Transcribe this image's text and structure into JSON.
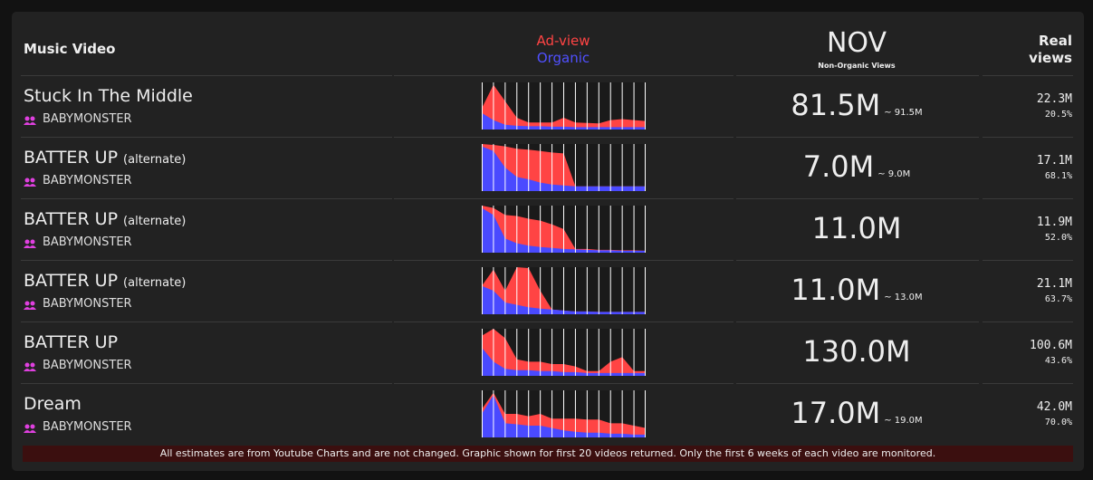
{
  "header": {
    "col_title": "Music Video",
    "legend_adview": "Ad-view",
    "legend_organic": "Organic",
    "nov_title": "NOV",
    "nov_subtitle": "Non-Organic Views",
    "real_views": "Real views"
  },
  "rows": [
    {
      "title": "Stuck In The Middle",
      "artist": "BABYMONSTER",
      "nov": "81.5M",
      "nov_range": "~ 91.5M",
      "real_views": "22.3M",
      "real_pct": "20.5%",
      "adview": [
        45,
        95,
        60,
        25,
        15,
        15,
        15,
        25,
        15,
        14,
        13,
        20,
        22,
        20,
        18
      ],
      "organic": [
        35,
        20,
        10,
        8,
        7,
        7,
        6,
        6,
        5,
        5,
        5,
        5,
        5,
        5,
        5
      ]
    },
    {
      "title": "BATTER UP",
      "suffix": "(alternate)",
      "artist": "BABYMONSTER",
      "nov": "7.0M",
      "nov_range": "~ 9.0M",
      "real_views": "17.1M",
      "real_pct": "68.1%",
      "adview": [
        100,
        98,
        95,
        90,
        88,
        85,
        82,
        80,
        10,
        10,
        10,
        10,
        10,
        10,
        10
      ],
      "organic": [
        95,
        85,
        50,
        30,
        25,
        18,
        14,
        12,
        10,
        10,
        10,
        10,
        10,
        10,
        10
      ]
    },
    {
      "title": "BATTER UP",
      "suffix": "(alternate)",
      "artist": "BABYMONSTER",
      "nov": "11.0M",
      "real_views": "11.9M",
      "real_pct": "52.0%",
      "adview": [
        100,
        95,
        80,
        78,
        72,
        68,
        60,
        50,
        8,
        8,
        6,
        6,
        5,
        5,
        4
      ],
      "organic": [
        95,
        80,
        30,
        20,
        15,
        12,
        10,
        8,
        7,
        6,
        5,
        5,
        4,
        4,
        4
      ]
    },
    {
      "title": "BATTER UP",
      "suffix": "(alternate)",
      "artist": "BABYMONSTER",
      "nov": "11.0M",
      "nov_range": "~ 13.0M",
      "real_views": "21.1M",
      "real_pct": "63.7%",
      "adview": [
        60,
        95,
        50,
        100,
        98,
        50,
        10,
        8,
        6,
        6,
        5,
        5,
        5,
        5,
        5
      ],
      "organic": [
        60,
        50,
        25,
        20,
        15,
        12,
        10,
        8,
        6,
        6,
        5,
        5,
        5,
        5,
        5
      ]
    },
    {
      "title": "BATTER UP",
      "artist": "BABYMONSTER",
      "nov": "130.0M",
      "real_views": "100.6M",
      "real_pct": "43.6%",
      "adview": [
        85,
        100,
        80,
        35,
        30,
        30,
        25,
        25,
        20,
        10,
        10,
        30,
        40,
        10,
        10
      ],
      "organic": [
        60,
        30,
        15,
        12,
        12,
        10,
        10,
        8,
        8,
        6,
        6,
        6,
        6,
        6,
        6
      ]
    },
    {
      "title": "Dream",
      "artist": "BABYMONSTER",
      "nov": "17.0M",
      "nov_range": "~ 19.0M",
      "real_views": "42.0M",
      "real_pct": "70.0%",
      "adview": [
        60,
        95,
        50,
        50,
        45,
        50,
        40,
        40,
        40,
        38,
        38,
        30,
        30,
        25,
        20
      ],
      "organic": [
        50,
        90,
        30,
        28,
        25,
        25,
        20,
        15,
        12,
        10,
        10,
        8,
        8,
        6,
        6
      ]
    }
  ],
  "footer": "All estimates are from Youtube Charts and are not changed. Graphic shown for first 20 videos returned. Only the first 6 weeks of each video are monitored."
}
